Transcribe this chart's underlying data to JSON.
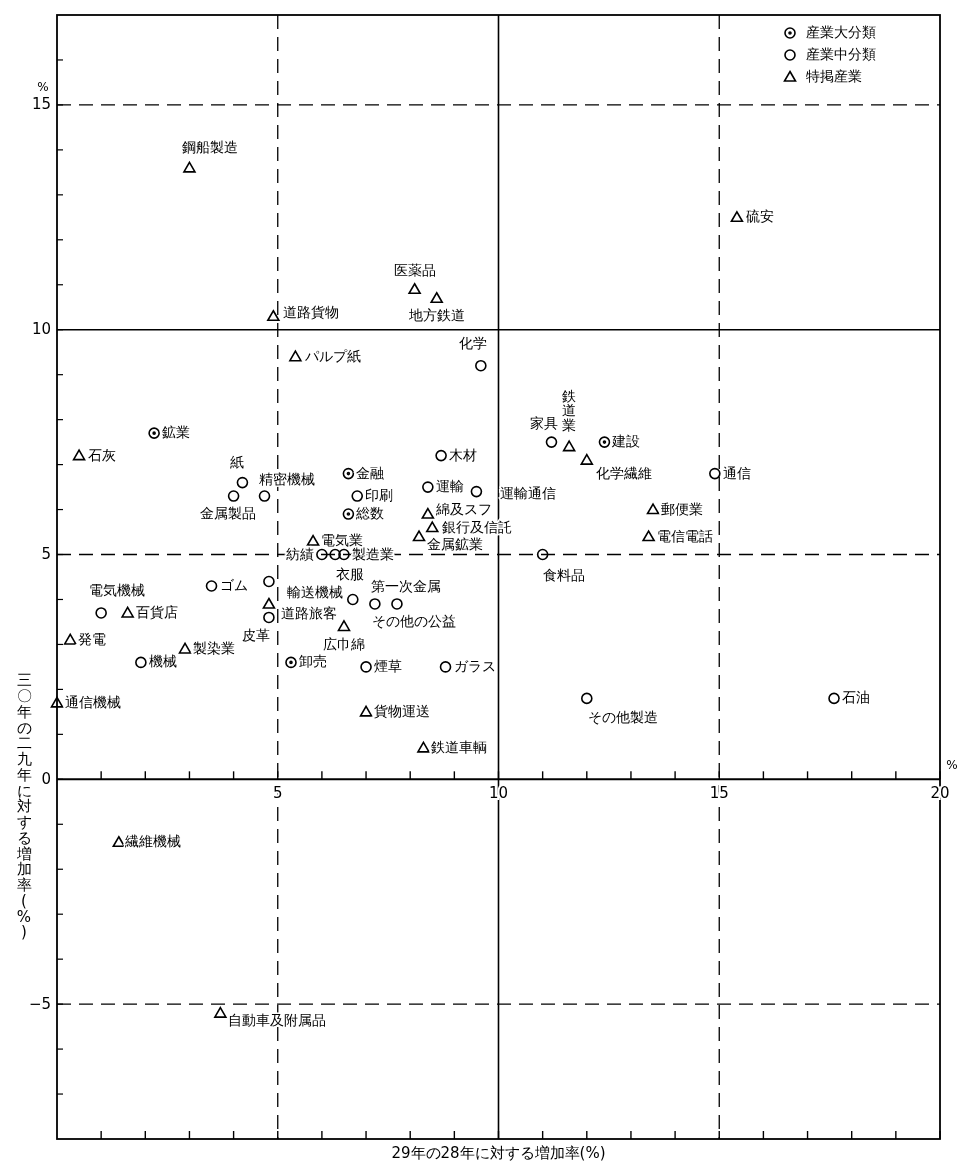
{
  "chart_data": {
    "type": "scatter",
    "xlabel": "29年の28年に対する増加率(%)",
    "ylabel": "三〇年の二九年に対する増加率(%)",
    "xlim": [
      0,
      20
    ],
    "ylim": [
      -8,
      17
    ],
    "xticks": [
      {
        "value": 1,
        "label": null
      },
      {
        "value": 2,
        "label": null
      },
      {
        "value": 3,
        "label": null
      },
      {
        "value": 4,
        "label": null
      },
      5,
      {
        "value": 6,
        "label": null
      },
      {
        "value": 7,
        "label": null
      },
      {
        "value": 8,
        "label": null
      },
      {
        "value": 9,
        "label": null
      },
      10,
      {
        "value": 11,
        "label": null
      },
      {
        "value": 12,
        "label": null
      },
      {
        "value": 13,
        "label": null
      },
      {
        "value": 14,
        "label": null
      },
      15,
      {
        "value": 16,
        "label": null
      },
      {
        "value": 17,
        "label": null
      },
      {
        "value": 18,
        "label": null
      },
      {
        "value": 19,
        "label": null
      },
      20
    ],
    "yticks": [
      {
        "value": -7,
        "label": null
      },
      {
        "value": -6,
        "label": null
      },
      -5,
      {
        "value": -4,
        "label": null
      },
      {
        "value": -3,
        "label": null
      },
      {
        "value": -2,
        "label": null
      },
      {
        "value": -1,
        "label": null
      },
      0,
      {
        "value": 1,
        "label": null
      },
      {
        "value": 2,
        "label": null
      },
      {
        "value": 3,
        "label": null
      },
      {
        "value": 4,
        "label": null
      },
      5,
      {
        "value": 6,
        "label": null
      },
      {
        "value": 7,
        "label": null
      },
      {
        "value": 8,
        "label": null
      },
      {
        "value": 9,
        "label": null
      },
      10,
      {
        "value": 11,
        "label": null
      },
      {
        "value": 12,
        "label": null
      },
      {
        "value": 13,
        "label": null
      },
      {
        "value": 14,
        "label": null
      },
      15,
      {
        "value": 16,
        "label": null
      }
    ],
    "grid": true,
    "legend": "top right",
    "series": [
      {
        "name": "産業大分類",
        "color": "#000000",
        "marker": "circle-dot",
        "x": [
          2.2,
          6.6,
          12.4,
          6.6,
          5.3
        ],
        "values": [
          7.7,
          6.8,
          7.5,
          5.9,
          2.6
        ]
      },
      {
        "name": "産業中分類",
        "color": "#000000",
        "marker": "circle",
        "x": [
          8.7,
          8.4,
          9.5,
          6.8,
          9.6,
          11.2,
          14.9,
          11.0,
          12.0,
          17.6,
          4.2,
          4.0,
          4.7,
          3.5,
          1.0,
          1.9,
          4.8,
          6.7,
          7.7,
          7.2,
          6.0,
          6.3,
          6.5,
          7.0,
          8.8,
          4.8
        ],
        "values": [
          7.2,
          6.5,
          6.4,
          6.3,
          9.2,
          7.5,
          6.8,
          5.0,
          1.8,
          1.8,
          6.6,
          6.3,
          6.3,
          4.3,
          3.7,
          2.6,
          3.6,
          4.0,
          3.9,
          3.9,
          5.0,
          5.0,
          5.0,
          2.5,
          2.5,
          4.4
        ]
      },
      {
        "name": "特掲産業",
        "color": "#000000",
        "marker": "triangle",
        "x": [
          3.0,
          4.9,
          8.1,
          8.6,
          5.4,
          15.4,
          0.5,
          11.6,
          12.0,
          13.5,
          13.4,
          8.4,
          8.5,
          8.2,
          5.8,
          1.6,
          0.3,
          2.9,
          0.0,
          4.8,
          6.5,
          7.0,
          8.3,
          1.4,
          3.7
        ],
        "values": [
          13.6,
          10.3,
          10.9,
          10.7,
          9.4,
          12.5,
          7.2,
          7.4,
          7.1,
          6.0,
          5.4,
          5.9,
          5.6,
          5.4,
          5.3,
          3.7,
          3.1,
          2.9,
          1.7,
          3.9,
          3.4,
          1.5,
          0.7,
          -1.4,
          -5.2
        ]
      }
    ],
    "annotations": [
      {
        "text": "鋼船製造",
        "x": 3.0,
        "y": 13.6
      },
      {
        "text": "道路貨物",
        "x": 4.9,
        "y": 10.3
      },
      {
        "text": "医薬品",
        "x": 8.1,
        "y": 10.9
      },
      {
        "text": "地方鉄道",
        "x": 8.6,
        "y": 10.7
      },
      {
        "text": "パルプ紙",
        "x": 5.4,
        "y": 9.4
      },
      {
        "text": "硫安",
        "x": 15.4,
        "y": 12.5
      },
      {
        "text": "石灰",
        "x": 0.5,
        "y": 7.2
      },
      {
        "text": "鉄道業",
        "x": 11.6,
        "y": 7.4
      },
      {
        "text": "化学繊維",
        "x": 12.0,
        "y": 7.1
      },
      {
        "text": "郵便業",
        "x": 13.5,
        "y": 6.0
      },
      {
        "text": "電信電話",
        "x": 13.4,
        "y": 5.4
      },
      {
        "text": "綿及スフ",
        "x": 8.4,
        "y": 5.9
      },
      {
        "text": "銀行及信託",
        "x": 8.5,
        "y": 5.6
      },
      {
        "text": "金属鉱業",
        "x": 8.2,
        "y": 5.4
      },
      {
        "text": "電気業",
        "x": 5.8,
        "y": 5.3
      },
      {
        "text": "百貨店",
        "x": 1.6,
        "y": 3.7
      },
      {
        "text": "発電",
        "x": 0.3,
        "y": 3.1
      },
      {
        "text": "製染業",
        "x": 2.9,
        "y": 2.9
      },
      {
        "text": "通信機械",
        "x": 0.0,
        "y": 1.7
      },
      {
        "text": "道路旅客",
        "x": 4.8,
        "y": 3.9
      },
      {
        "text": "広巾綿",
        "x": 6.5,
        "y": 3.4
      },
      {
        "text": "貨物運送",
        "x": 7.0,
        "y": 1.5
      },
      {
        "text": "鉄道車輌",
        "x": 8.3,
        "y": 0.7
      },
      {
        "text": "繊維機械",
        "x": 1.4,
        "y": -1.4
      },
      {
        "text": "自動車及附属品",
        "x": 3.7,
        "y": -5.2
      },
      {
        "text": "鉱業",
        "x": 2.2,
        "y": 7.7
      },
      {
        "text": "金融",
        "x": 6.6,
        "y": 6.8
      },
      {
        "text": "建設",
        "x": 12.4,
        "y": 7.5
      },
      {
        "text": "総数",
        "x": 6.6,
        "y": 5.9
      },
      {
        "text": "卸売",
        "x": 5.3,
        "y": 2.6
      },
      {
        "text": "木材",
        "x": 8.7,
        "y": 7.2
      },
      {
        "text": "運輸",
        "x": 8.4,
        "y": 6.5
      },
      {
        "text": "運輸通信",
        "x": 9.5,
        "y": 6.4
      },
      {
        "text": "印刷",
        "x": 6.8,
        "y": 6.3
      },
      {
        "text": "化学",
        "x": 9.6,
        "y": 9.2
      },
      {
        "text": "家具",
        "x": 11.2,
        "y": 7.5
      },
      {
        "text": "通信",
        "x": 14.9,
        "y": 6.8
      },
      {
        "text": "食料品",
        "x": 11.0,
        "y": 5.0
      },
      {
        "text": "その他製造",
        "x": 12.0,
        "y": 1.8
      },
      {
        "text": "石油",
        "x": 17.6,
        "y": 1.8
      },
      {
        "text": "紙",
        "x": 4.2,
        "y": 6.6
      },
      {
        "text": "金属製品",
        "x": 4.0,
        "y": 6.3
      },
      {
        "text": "精密機械",
        "x": 4.7,
        "y": 6.3
      },
      {
        "text": "ゴム",
        "x": 3.5,
        "y": 4.3
      },
      {
        "text": "電気機械",
        "x": 1.0,
        "y": 3.7
      },
      {
        "text": "機械",
        "x": 1.9,
        "y": 2.6
      },
      {
        "text": "皮革",
        "x": 4.8,
        "y": 3.6
      },
      {
        "text": "輸送機械",
        "x": 6.7,
        "y": 4.0
      },
      {
        "text": "衣服",
        "x": 6.3,
        "y": 5.0
      },
      {
        "text": "第一次金属",
        "x": 7.7,
        "y": 3.9
      },
      {
        "text": "その他の公益",
        "x": 7.2,
        "y": 3.9
      },
      {
        "text": "紡績",
        "x": 6.0,
        "y": 5.0
      },
      {
        "text": "製造業",
        "x": 6.5,
        "y": 5.0
      },
      {
        "text": "煙草",
        "x": 7.0,
        "y": 2.5
      },
      {
        "text": "ガラス",
        "x": 8.8,
        "y": 2.5
      },
      "%",
      "%"
    ]
  }
}
